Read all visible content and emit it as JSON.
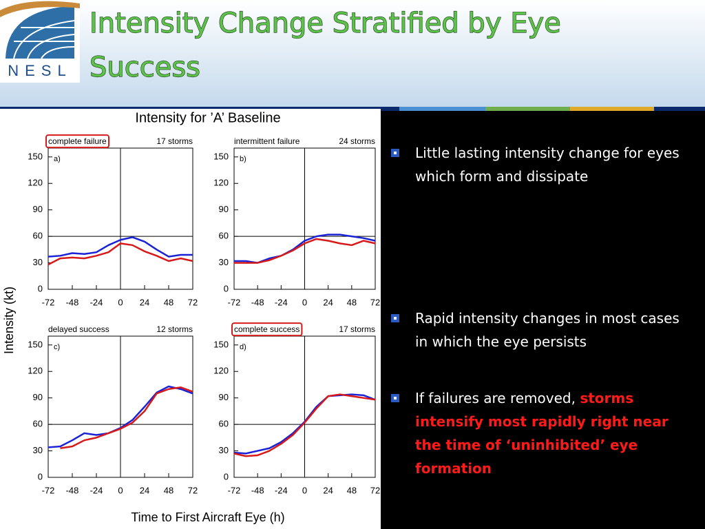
{
  "header": {
    "title": "Intensity Change Stratified by Eye Success",
    "logo_text": "NESL"
  },
  "figure": {
    "title": "Intensity for ’A’ Baseline",
    "ylabel": "Intensity (kt)",
    "xlabel": "Time to First Aircraft Eye (h)"
  },
  "chart_data": [
    {
      "type": "line",
      "title": "complete failure",
      "title_boxed": true,
      "subtitle": "17 storms",
      "panel_label": "a)",
      "x": [
        -72,
        -60,
        -48,
        -36,
        -24,
        -12,
        0,
        12,
        24,
        36,
        48,
        60,
        72
      ],
      "series": [
        {
          "color": "#1a22d6",
          "values": [
            37,
            38,
            41,
            40,
            42,
            50,
            56,
            59,
            54,
            45,
            37,
            39,
            39
          ]
        },
        {
          "color": "#d61a1a",
          "values": [
            28,
            35,
            36,
            35,
            38,
            42,
            52,
            50,
            43,
            38,
            32,
            35,
            32
          ]
        }
      ],
      "xlim": [
        -72,
        72
      ],
      "ylim": [
        0,
        160
      ],
      "xticks": [
        -72,
        -48,
        -24,
        0,
        24,
        48,
        72
      ],
      "yticks": [
        0,
        30,
        60,
        90,
        120,
        150
      ],
      "hline": 60,
      "vline": 0
    },
    {
      "type": "line",
      "title": "intermittent failure",
      "title_boxed": false,
      "subtitle": "24 storms",
      "panel_label": "b)",
      "x": [
        -72,
        -60,
        -48,
        -36,
        -24,
        -12,
        0,
        12,
        24,
        36,
        48,
        60,
        72
      ],
      "series": [
        {
          "color": "#1a22d6",
          "values": [
            32,
            32,
            30,
            35,
            38,
            45,
            55,
            60,
            62,
            62,
            60,
            58,
            55
          ]
        },
        {
          "color": "#d61a1a",
          "values": [
            30,
            30,
            30,
            33,
            38,
            44,
            52,
            57,
            55,
            52,
            50,
            55,
            52
          ]
        }
      ],
      "xlim": [
        -72,
        72
      ],
      "ylim": [
        0,
        160
      ],
      "xticks": [
        -72,
        -48,
        -24,
        0,
        24,
        48,
        72
      ],
      "yticks": [
        0,
        30,
        60,
        90,
        120,
        150
      ],
      "hline": 60,
      "vline": 0
    },
    {
      "type": "line",
      "title": "delayed success",
      "title_boxed": false,
      "subtitle": "12 storms",
      "panel_label": "c)",
      "x": [
        -72,
        -60,
        -48,
        -36,
        -24,
        -12,
        0,
        12,
        24,
        36,
        48,
        60,
        72
      ],
      "series": [
        {
          "color": "#1a22d6",
          "values": [
            34,
            35,
            42,
            50,
            48,
            50,
            56,
            65,
            80,
            96,
            103,
            100,
            95
          ]
        },
        {
          "color": "#d61a1a",
          "values": [
            null,
            33,
            35,
            42,
            45,
            50,
            55,
            62,
            75,
            95,
            100,
            102,
            97
          ]
        }
      ],
      "xlim": [
        -72,
        72
      ],
      "ylim": [
        0,
        160
      ],
      "xticks": [
        -72,
        -48,
        -24,
        0,
        24,
        48,
        72
      ],
      "yticks": [
        0,
        30,
        60,
        90,
        120,
        150
      ],
      "hline": 60,
      "vline": 0
    },
    {
      "type": "line",
      "title": "complete success",
      "title_boxed": true,
      "subtitle": "17 storms",
      "panel_label": "d)",
      "x": [
        -72,
        -60,
        -48,
        -36,
        -24,
        -12,
        0,
        12,
        24,
        36,
        48,
        60,
        72
      ],
      "series": [
        {
          "color": "#1a22d6",
          "values": [
            28,
            27,
            30,
            33,
            40,
            50,
            63,
            80,
            92,
            93,
            94,
            93,
            88
          ]
        },
        {
          "color": "#d61a1a",
          "values": [
            27,
            24,
            25,
            30,
            38,
            48,
            62,
            78,
            92,
            94,
            92,
            90,
            88
          ]
        }
      ],
      "xlim": [
        -72,
        72
      ],
      "ylim": [
        0,
        160
      ],
      "xticks": [
        -72,
        -48,
        -24,
        0,
        24,
        48,
        72
      ],
      "yticks": [
        0,
        30,
        60,
        90,
        120,
        150
      ],
      "hline": 60,
      "vline": 0
    }
  ],
  "bullets": [
    {
      "text": "Little lasting intensity change for eyes which form and dissipate"
    },
    {
      "text": "Rapid intensity changes in most cases in which the eye persists"
    },
    {
      "text": "If failures are removed,",
      "emphasis": "storms intensify most rapidly right near the time of ‘uninhibited’ eye formation"
    }
  ]
}
